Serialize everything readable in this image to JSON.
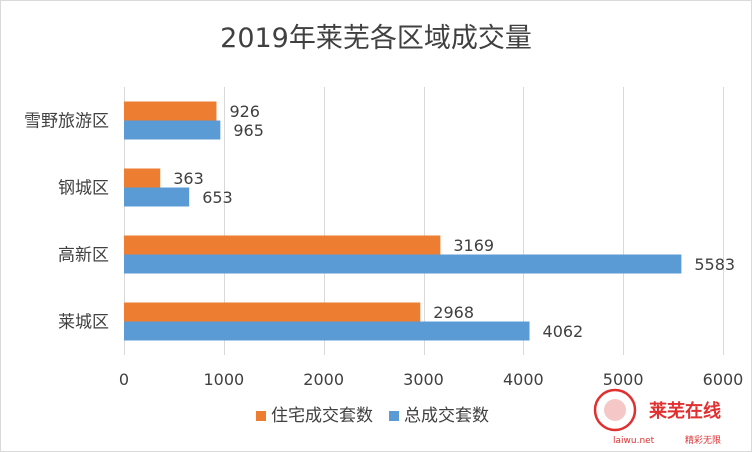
{
  "chart_data": {
    "type": "bar",
    "orientation": "horizontal",
    "title": "2019年莱芜各区域成交量",
    "categories": [
      "雪野旅游区",
      "钢城区",
      "高新区",
      "莱城区"
    ],
    "series": [
      {
        "name": "住宅成交套数",
        "color": "#ED7D31",
        "values": [
          926,
          363,
          3169,
          2968
        ]
      },
      {
        "name": "总成交套数",
        "color": "#5B9BD5",
        "values": [
          965,
          653,
          5583,
          4062
        ]
      }
    ],
    "xlim": [
      0,
      6000
    ],
    "xticks": [
      0,
      1000,
      2000,
      3000,
      4000,
      5000,
      6000
    ],
    "grid": true,
    "legend_position": "bottom",
    "data_labels": true
  },
  "watermark": {
    "brand": "莱芜在线",
    "url": "laiwu.net",
    "slogan": "精彩无限"
  }
}
